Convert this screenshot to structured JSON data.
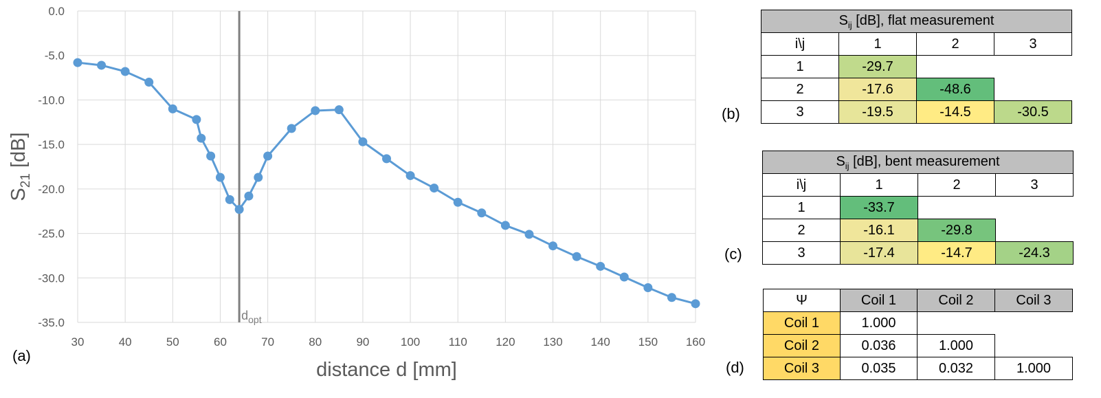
{
  "chart_data": {
    "type": "line",
    "xlabel": "distance d [mm]",
    "ylabel_main": "S",
    "ylabel_sub": "21",
    "ylabel_unit": " [dB]",
    "xlim": [
      30,
      160
    ],
    "ylim": [
      -35,
      0
    ],
    "xticks": [
      30,
      40,
      50,
      60,
      70,
      80,
      90,
      100,
      110,
      120,
      130,
      140,
      150,
      160
    ],
    "yticks": [
      "0.0",
      "-5.0",
      "-10.0",
      "-15.0",
      "-20.0",
      "-25.0",
      "-30.0",
      "-35.0"
    ],
    "grid": true,
    "series_color": "#5b9bd5",
    "vline": {
      "x": 64,
      "label_main": "d",
      "label_sub": "opt",
      "color": "#7f7f7f"
    },
    "x": [
      30,
      35,
      40,
      45,
      50,
      55,
      56,
      58,
      60,
      62,
      64,
      66,
      68,
      70,
      75,
      80,
      85,
      90,
      95,
      100,
      105,
      110,
      115,
      120,
      125,
      130,
      135,
      140,
      145,
      150,
      155,
      160
    ],
    "y": [
      -5.8,
      -6.1,
      -6.8,
      -8.0,
      -11.0,
      -12.2,
      -14.3,
      -16.3,
      -18.7,
      -21.2,
      -22.3,
      -20.8,
      -18.7,
      -16.3,
      -13.2,
      -11.2,
      -11.1,
      -14.7,
      -16.6,
      -18.5,
      -19.9,
      -21.5,
      -22.7,
      -24.1,
      -25.1,
      -26.4,
      -27.6,
      -28.7,
      -29.9,
      -31.1,
      -32.2,
      -32.9
    ]
  },
  "labels": {
    "a": "(a)",
    "b": "(b)",
    "c": "(c)",
    "d": "(d)"
  },
  "table_b": {
    "title_main": "S",
    "title_sub": "ij",
    "title_rest": " [dB], flat measurement",
    "corner": "i\\j",
    "cols": [
      "1",
      "2",
      "3"
    ],
    "rows": [
      {
        "label": "1",
        "cells": [
          "-29.7",
          "",
          ""
        ],
        "colors": [
          "#c0da8c",
          "",
          ""
        ]
      },
      {
        "label": "2",
        "cells": [
          "-17.6",
          "-48.6",
          ""
        ],
        "colors": [
          "#f0e69b",
          "#63be7b",
          ""
        ]
      },
      {
        "label": "3",
        "cells": [
          "-19.5",
          "-14.5",
          "-30.5"
        ],
        "colors": [
          "#e7e59a",
          "#ffeb84",
          "#bcd98b"
        ]
      }
    ]
  },
  "table_c": {
    "title_main": "S",
    "title_sub": "ij",
    "title_rest": " [dB], bent measurement",
    "corner": "i\\j",
    "cols": [
      "1",
      "2",
      "3"
    ],
    "rows": [
      {
        "label": "1",
        "cells": [
          "-33.7",
          "",
          ""
        ],
        "colors": [
          "#63be7b",
          "",
          ""
        ]
      },
      {
        "label": "2",
        "cells": [
          "-16.1",
          "-29.8",
          ""
        ],
        "colors": [
          "#f0e69b",
          "#77c47d",
          ""
        ]
      },
      {
        "label": "3",
        "cells": [
          "-17.4",
          "-14.7",
          "-24.3"
        ],
        "colors": [
          "#e8e49a",
          "#ffeb84",
          "#a4d287"
        ]
      }
    ]
  },
  "table_d": {
    "corner": "Ψ",
    "cols": [
      "Coil 1",
      "Coil 2",
      "Coil 3"
    ],
    "rows": [
      {
        "label": "Coil 1",
        "cells": [
          "1.000",
          "",
          ""
        ]
      },
      {
        "label": "Coil 2",
        "cells": [
          "0.036",
          "1.000",
          ""
        ]
      },
      {
        "label": "Coil 3",
        "cells": [
          "0.035",
          "0.032",
          "1.000"
        ]
      }
    ]
  }
}
